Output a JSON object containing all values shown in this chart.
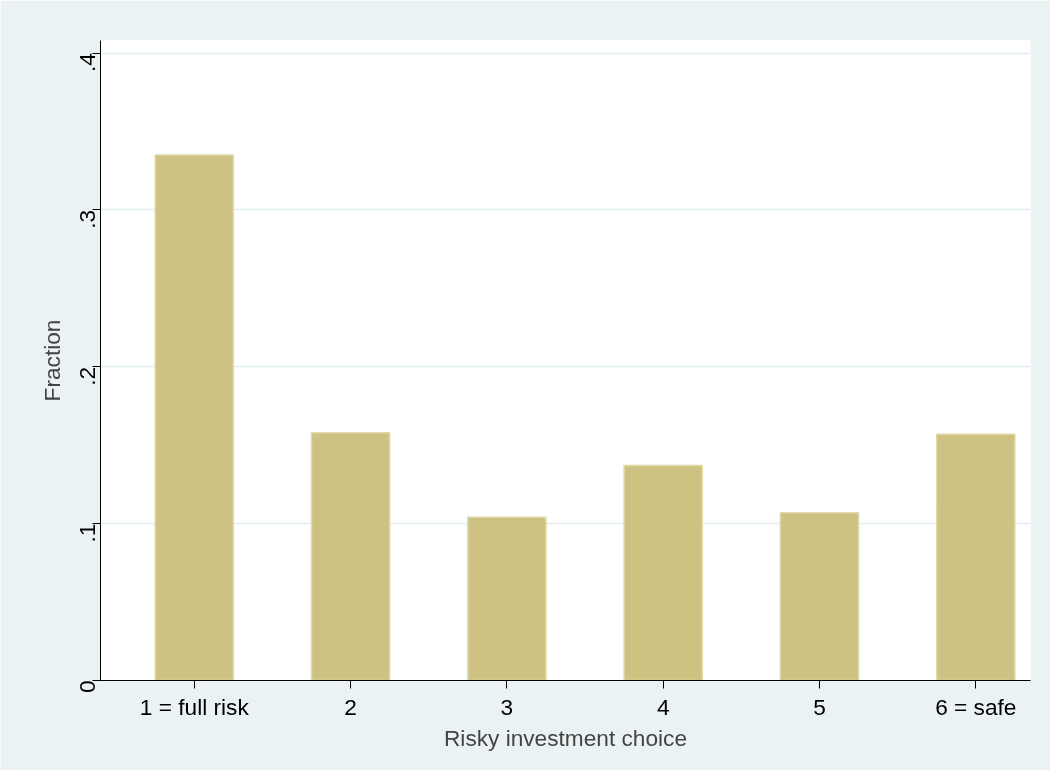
{
  "chart_data": {
    "type": "bar",
    "xlabel": "Risky investment choice",
    "ylabel": "Fraction",
    "categories": [
      "1 = full risk",
      "2",
      "3",
      "4",
      "5",
      "6 = safe"
    ],
    "values": [
      0.335,
      0.158,
      0.104,
      0.137,
      0.107,
      0.157
    ],
    "color": "#cdc282",
    "ylim": [
      0,
      0.4
    ],
    "yticks": [
      {
        "value": 0,
        "label": "0"
      },
      {
        "value": 0.1,
        "label": ".1"
      },
      {
        "value": 0.2,
        "label": ".2"
      },
      {
        "value": 0.3,
        "label": ".3"
      },
      {
        "value": 0.4,
        "label": ".4"
      }
    ],
    "grid": "y"
  }
}
